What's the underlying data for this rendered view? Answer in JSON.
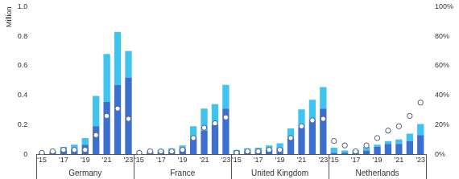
{
  "chart_data": {
    "type": "bar",
    "stacked": true,
    "grid": false,
    "y_label": "Million",
    "groups": [
      "Germany",
      "France",
      "United Kingdom",
      "Netherlands"
    ],
    "categories": [
      "'15",
      null,
      "'17",
      null,
      "'19",
      null,
      "'21",
      null,
      "'23",
      "'15",
      null,
      "'17",
      null,
      "'19",
      null,
      "'21",
      null,
      "'23",
      "'15",
      null,
      "'17",
      null,
      "'19",
      null,
      "'21",
      null,
      "'23",
      "'15",
      null,
      "'17",
      null,
      "'19",
      null,
      "'21",
      null,
      "'23"
    ],
    "ylim": [
      0,
      1
    ],
    "yticks": [
      0,
      0.2,
      0.4,
      0.6,
      0.8,
      {
        "value": 1,
        "label": "1.0"
      }
    ],
    "y2lim": [
      0,
      100
    ],
    "y2ticks": [
      {
        "value": 0,
        "label": "0%"
      },
      {
        "value": 20,
        "label": "20%"
      },
      {
        "value": 40,
        "label": "40%"
      },
      {
        "value": 60,
        "label": "60%"
      },
      {
        "value": 80,
        "label": "80%"
      },
      {
        "value": 100,
        "label": "100%"
      }
    ],
    "series": [
      {
        "type": "bar",
        "color": "#3c6fce",
        "values": [
          0.005,
          0.01,
          0.025,
          0.035,
          0.065,
          0.19,
          0.355,
          0.47,
          0.52,
          0.003,
          0.01,
          0.015,
          0.02,
          0.035,
          0.11,
          0.16,
          0.2,
          0.31,
          0.015,
          0.02,
          0.025,
          0.03,
          0.04,
          0.11,
          0.18,
          0.23,
          0.31,
          0.01,
          0.01,
          0.01,
          0.025,
          0.05,
          0.07,
          0.07,
          0.09,
          0.13
        ]
      },
      {
        "type": "bar",
        "color": "#3fc4ef",
        "values": [
          0.005,
          0.01,
          0.025,
          0.03,
          0.045,
          0.205,
          0.325,
          0.36,
          0.18,
          0.002,
          0.01,
          0.015,
          0.02,
          0.025,
          0.08,
          0.15,
          0.14,
          0.16,
          0.015,
          0.02,
          0.02,
          0.03,
          0.035,
          0.065,
          0.125,
          0.14,
          0.145,
          0.035,
          0.015,
          0.02,
          0.025,
          0.015,
          0.02,
          0.03,
          0.05,
          0.075
        ]
      },
      {
        "type": "line",
        "axis": "y2",
        "marker": "circle",
        "line_style": "none",
        "color": "#ffffff",
        "values": [
          1,
          2,
          3,
          3,
          3,
          13,
          26,
          31,
          24,
          1,
          2,
          2,
          2,
          3,
          11,
          18,
          21,
          25,
          1,
          2,
          2,
          3,
          3,
          11,
          19,
          23,
          24,
          9,
          6,
          2,
          6,
          11,
          16,
          19,
          26,
          35
        ]
      }
    ]
  }
}
